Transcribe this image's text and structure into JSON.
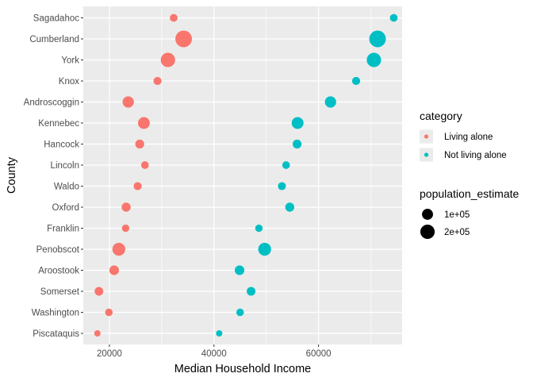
{
  "chart_data": {
    "type": "scatter",
    "title": "",
    "xlabel": "Median Household Income",
    "ylabel": "County",
    "xlim": [
      15000,
      76000
    ],
    "xticks": [
      20000,
      40000,
      60000
    ],
    "xtick_labels": [
      "20000",
      "40000",
      "60000"
    ],
    "grid": true,
    "categories": [
      "Sagadahoc",
      "Cumberland",
      "York",
      "Knox",
      "Androscoggin",
      "Kennebec",
      "Hancock",
      "Lincoln",
      "Waldo",
      "Oxford",
      "Franklin",
      "Penobscot",
      "Aroostook",
      "Somerset",
      "Washington",
      "Piscataquis"
    ],
    "series": [
      {
        "name": "Living alone",
        "color": "#F8766D",
        "values": [
          32300,
          34200,
          31200,
          29200,
          23600,
          26600,
          25800,
          26800,
          25400,
          23200,
          23100,
          21800,
          20900,
          18000,
          19900,
          17700
        ],
        "population": [
          35000,
          290000,
          200000,
          40000,
          107000,
          122000,
          54000,
          34000,
          39000,
          57000,
          30000,
          152000,
          68000,
          51000,
          32000,
          17000
        ]
      },
      {
        "name": "Not living alone",
        "color": "#00BFC4",
        "values": [
          74400,
          71300,
          70600,
          67200,
          62300,
          56000,
          55900,
          53800,
          53000,
          54500,
          48600,
          49700,
          44900,
          47100,
          45000,
          41000
        ],
        "population": [
          35000,
          290000,
          200000,
          40000,
          107000,
          122000,
          54000,
          34000,
          39000,
          57000,
          30000,
          152000,
          68000,
          51000,
          32000,
          17000
        ]
      }
    ],
    "legend": {
      "position": "right",
      "color_title": "category",
      "color_entries": [
        "Living alone",
        "Not living alone"
      ],
      "size_title": "population_estimate",
      "size_entries": [
        {
          "label": "1e+05",
          "value": 100000
        },
        {
          "label": "2e+05",
          "value": 200000
        }
      ]
    }
  }
}
